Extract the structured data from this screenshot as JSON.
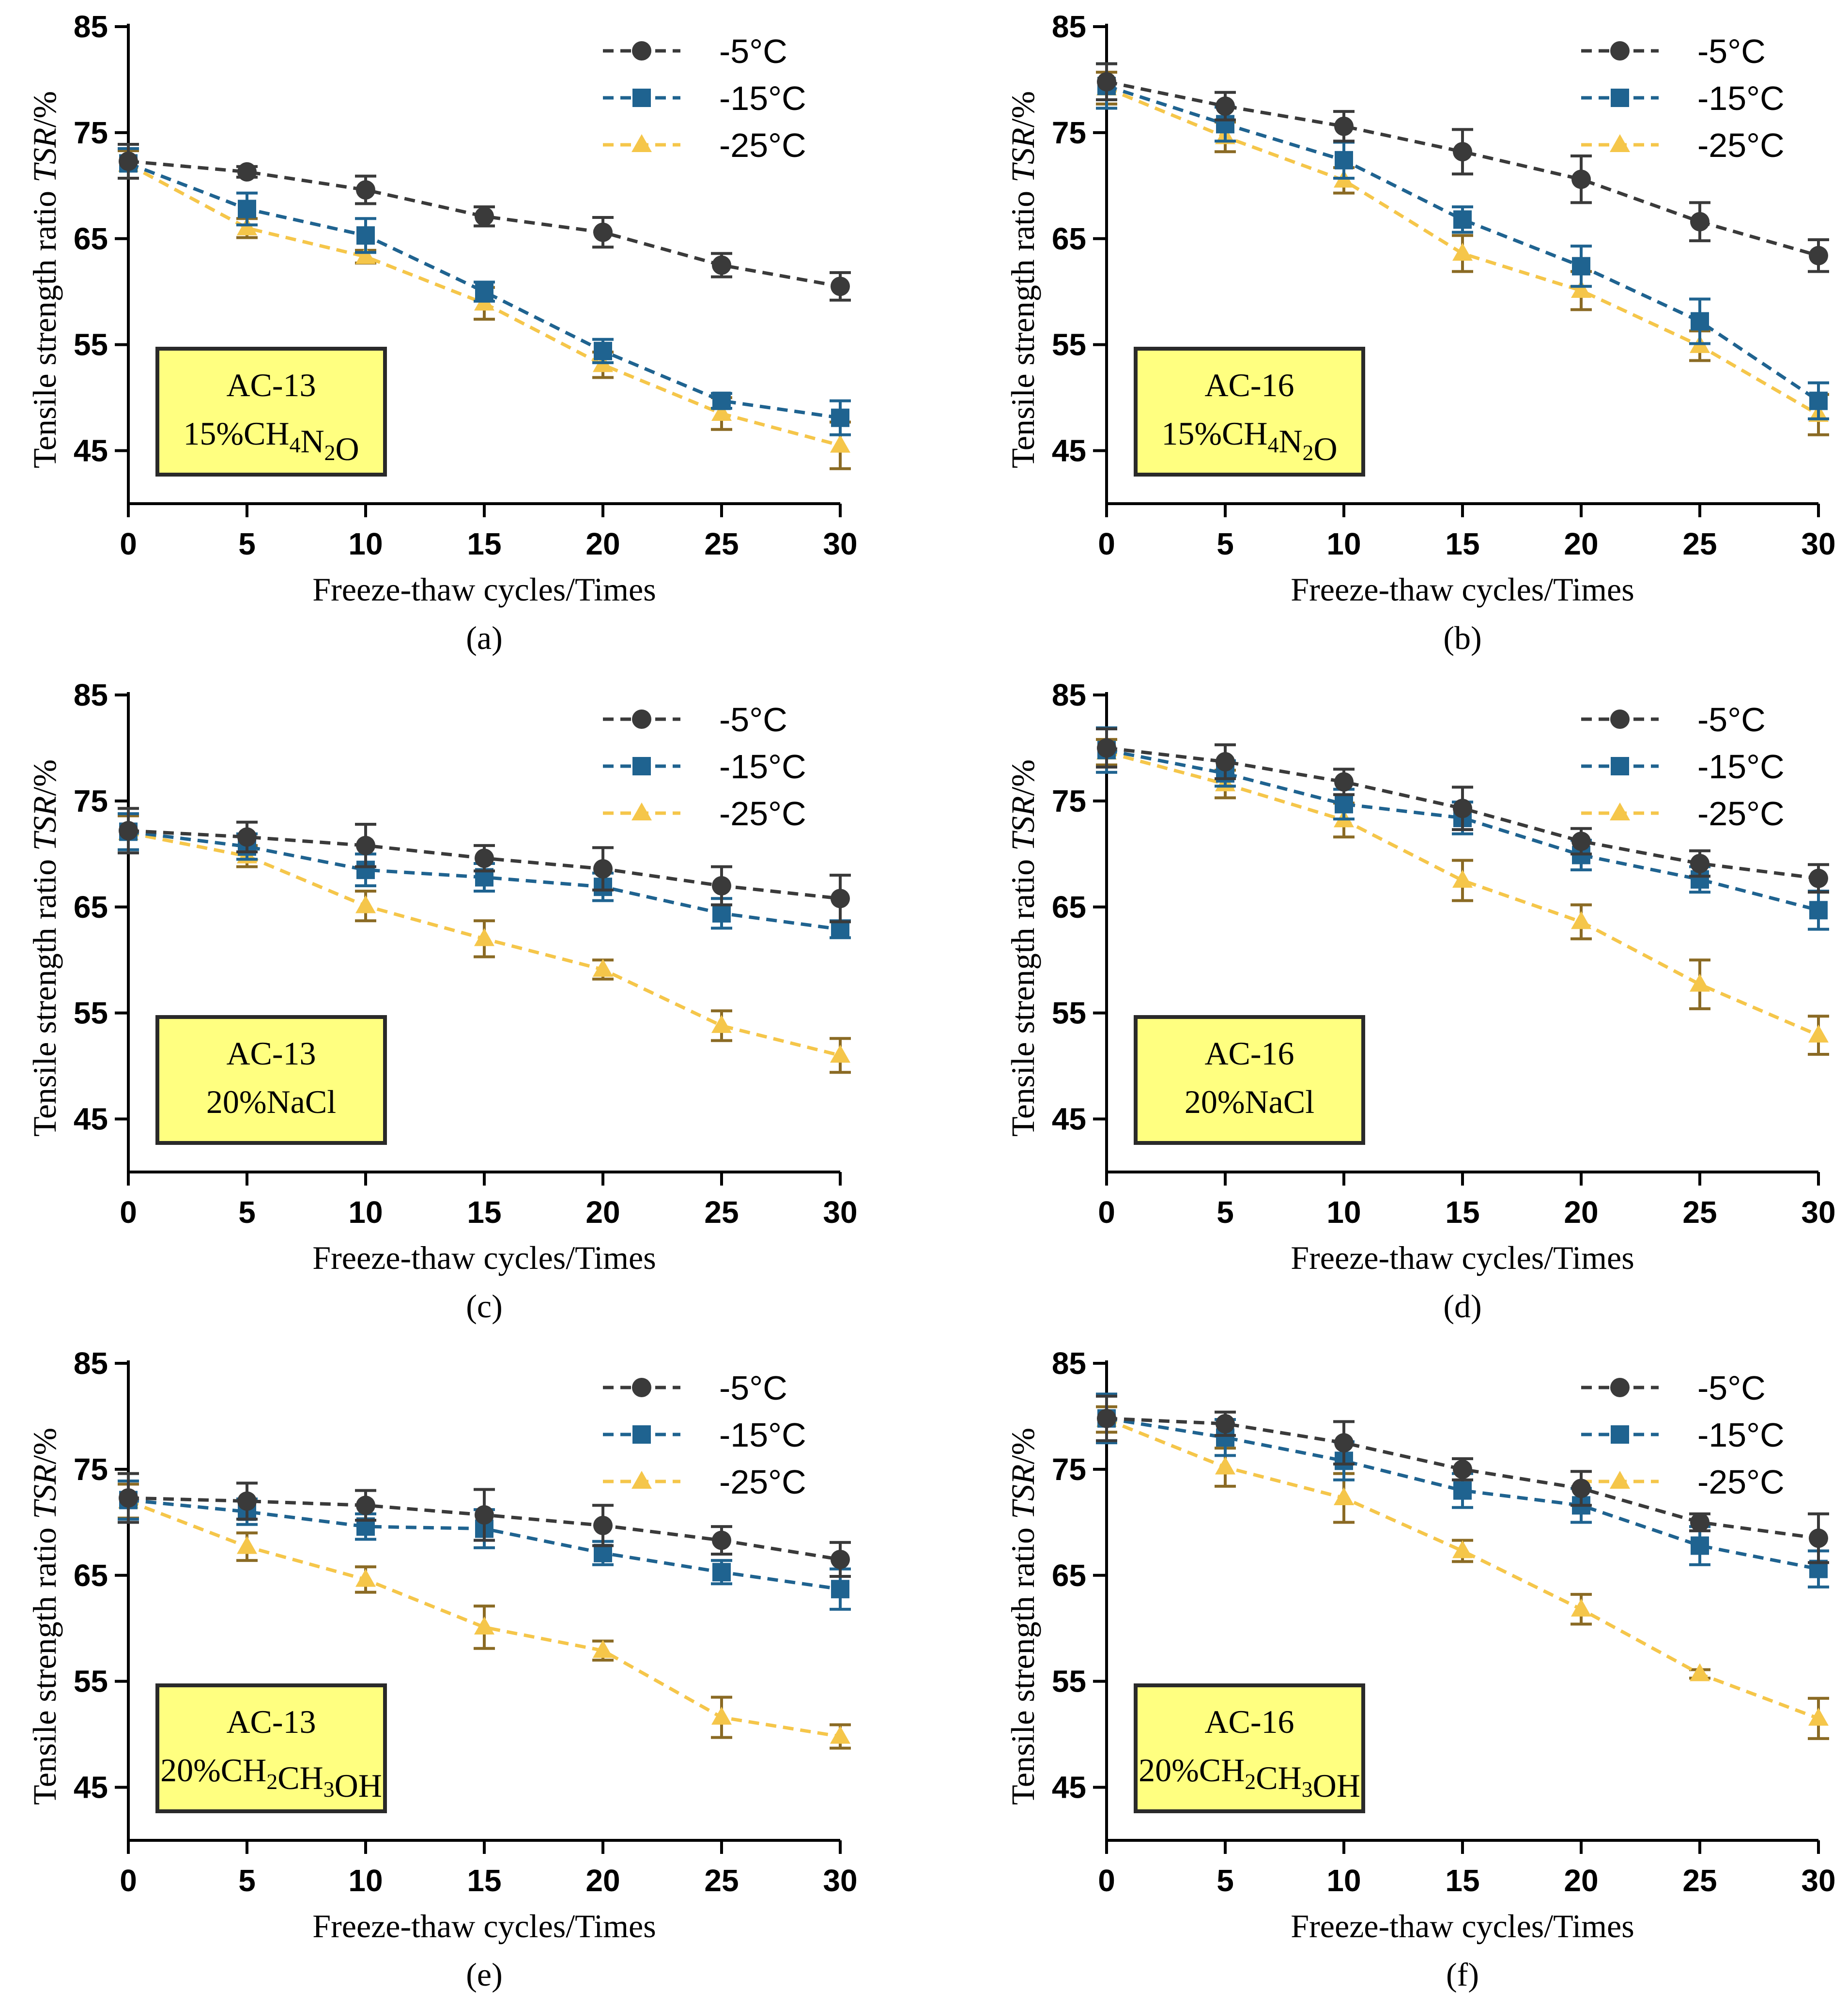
{
  "figure": {
    "legend_labels": [
      "-5°C",
      "-15°C",
      "-25°C"
    ],
    "series_colors": {
      "-5°C": "#3a3a3a",
      "-15°C": "#1f6390",
      "-25°C": "#f5c64a"
    },
    "error_bar_color_25": "#8a6a24",
    "annotation_box_fill": "#ffff80"
  },
  "chart_data": [
    {
      "panel": "(a)",
      "type": "line",
      "xlabel": "Freeze-thaw cycles/Times",
      "ylabel_prefix": "Tensile strength ratio ",
      "ylabel_italic": "TSR",
      "ylabel_suffix": "/%",
      "x": [
        0,
        5,
        10,
        15,
        20,
        25,
        30
      ],
      "xlim": [
        0,
        30
      ],
      "ylim": [
        40,
        85
      ],
      "yticks": [
        45,
        55,
        65,
        75,
        85
      ],
      "annotation": {
        "line1": "AC-13",
        "line2_parts": [
          [
            "15%CH",
            ""
          ],
          [
            "4",
            "sub"
          ],
          [
            "N",
            ""
          ],
          [
            "2",
            "sub"
          ],
          [
            "O",
            ""
          ]
        ]
      },
      "series": [
        {
          "name": "-5°C",
          "marker": "circle",
          "values": [
            72.3,
            71.3,
            69.6,
            67.1,
            65.6,
            62.5,
            60.5
          ],
          "errors": [
            1.6,
            0.5,
            1.3,
            0.9,
            1.4,
            1.1,
            1.3
          ]
        },
        {
          "name": "-15°C",
          "marker": "square",
          "values": [
            72.1,
            67.8,
            65.3,
            60.0,
            54.4,
            49.7,
            48.1
          ],
          "errors": [
            1.4,
            1.5,
            1.6,
            0.9,
            1.1,
            0.7,
            1.6
          ]
        },
        {
          "name": "-25°C",
          "marker": "triangle",
          "values": [
            72.0,
            66.0,
            63.3,
            58.9,
            53.1,
            48.5,
            45.5
          ],
          "errors": [
            1.3,
            0.9,
            0.6,
            1.5,
            1.2,
            1.5,
            2.2
          ]
        }
      ]
    },
    {
      "panel": "(b)",
      "type": "line",
      "xlabel": "Freeze-thaw cycles/Times",
      "ylabel_prefix": "Tensile strength ratio ",
      "ylabel_italic": "TSR",
      "ylabel_suffix": "/%",
      "x": [
        0,
        5,
        10,
        15,
        20,
        25,
        30
      ],
      "xlim": [
        0,
        30
      ],
      "ylim": [
        40,
        85
      ],
      "yticks": [
        45,
        55,
        65,
        75,
        85
      ],
      "annotation": {
        "line1": "AC-16",
        "line2_parts": [
          [
            "15%CH",
            ""
          ],
          [
            "4",
            "sub"
          ],
          [
            "N",
            ""
          ],
          [
            "2",
            "sub"
          ],
          [
            "O",
            ""
          ]
        ]
      },
      "series": [
        {
          "name": "-5°C",
          "marker": "circle",
          "values": [
            79.8,
            77.5,
            75.6,
            73.2,
            70.6,
            66.6,
            63.4
          ],
          "errors": [
            1.7,
            1.3,
            1.4,
            2.1,
            2.2,
            1.8,
            1.5
          ]
        },
        {
          "name": "-15°C",
          "marker": "square",
          "values": [
            79.4,
            75.8,
            72.4,
            66.8,
            62.4,
            57.2,
            49.7
          ],
          "errors": [
            2.1,
            1.6,
            1.7,
            1.2,
            1.9,
            2.1,
            1.7
          ]
        },
        {
          "name": "-25°C",
          "marker": "triangle",
          "values": [
            79.2,
            74.6,
            70.5,
            63.6,
            60.1,
            54.9,
            48.4
          ],
          "errors": [
            1.5,
            1.4,
            1.2,
            1.7,
            1.8,
            1.4,
            1.9
          ]
        }
      ]
    },
    {
      "panel": "(c)",
      "type": "line",
      "xlabel": "Freeze-thaw cycles/Times",
      "ylabel_prefix": "Tensile strength ratio ",
      "ylabel_italic": "TSR",
      "ylabel_suffix": "/%",
      "x": [
        0,
        5,
        10,
        15,
        20,
        25,
        30
      ],
      "xlim": [
        0,
        30
      ],
      "ylim": [
        40,
        85
      ],
      "yticks": [
        45,
        55,
        65,
        75,
        85
      ],
      "annotation": {
        "line1": "AC-13",
        "line2_parts": [
          [
            "20%NaCl",
            ""
          ]
        ]
      },
      "series": [
        {
          "name": "-5°C",
          "marker": "circle",
          "values": [
            72.2,
            71.6,
            70.8,
            69.6,
            68.6,
            67.0,
            65.8
          ],
          "errors": [
            2.1,
            1.4,
            2.0,
            1.2,
            2.0,
            1.8,
            2.2
          ]
        },
        {
          "name": "-15°C",
          "marker": "square",
          "values": [
            72.1,
            70.7,
            68.5,
            67.8,
            66.9,
            64.4,
            62.9
          ],
          "errors": [
            1.7,
            1.2,
            1.5,
            1.3,
            1.3,
            1.4,
            0.8
          ]
        },
        {
          "name": "-25°C",
          "marker": "triangle",
          "values": [
            72.0,
            69.8,
            65.1,
            62.0,
            59.1,
            53.8,
            51.0
          ],
          "errors": [
            1.6,
            1.0,
            1.4,
            1.7,
            0.9,
            1.4,
            1.6
          ]
        }
      ]
    },
    {
      "panel": "(d)",
      "type": "line",
      "xlabel": "Freeze-thaw cycles/Times",
      "ylabel_prefix": "Tensile strength ratio ",
      "ylabel_italic": "TSR",
      "ylabel_suffix": "/%",
      "x": [
        0,
        5,
        10,
        15,
        20,
        25,
        30
      ],
      "xlim": [
        0,
        30
      ],
      "ylim": [
        40,
        85
      ],
      "yticks": [
        45,
        55,
        65,
        75,
        85
      ],
      "annotation": {
        "line1": "AC-16",
        "line2_parts": [
          [
            "20%NaCl",
            ""
          ]
        ]
      },
      "series": [
        {
          "name": "-5°C",
          "marker": "circle",
          "values": [
            80.0,
            78.7,
            76.8,
            74.3,
            71.2,
            69.1,
            67.7
          ],
          "errors": [
            1.8,
            1.6,
            1.2,
            2.0,
            1.2,
            1.2,
            1.3
          ]
        },
        {
          "name": "-15°C",
          "marker": "square",
          "values": [
            79.8,
            77.6,
            74.7,
            73.4,
            69.9,
            67.6,
            64.7
          ],
          "errors": [
            2.1,
            1.2,
            1.4,
            1.5,
            1.4,
            1.2,
            1.8
          ]
        },
        {
          "name": "-25°C",
          "marker": "triangle",
          "values": [
            79.6,
            76.6,
            73.2,
            67.5,
            63.6,
            57.7,
            52.9
          ],
          "errors": [
            1.2,
            1.3,
            1.6,
            1.9,
            1.6,
            2.3,
            1.8
          ]
        }
      ]
    },
    {
      "panel": "(e)",
      "type": "line",
      "xlabel": "Freeze-thaw cycles/Times",
      "ylabel_prefix": "Tensile strength ratio ",
      "ylabel_italic": "TSR",
      "ylabel_suffix": "/%",
      "x": [
        0,
        5,
        10,
        15,
        20,
        25,
        30
      ],
      "xlim": [
        0,
        30
      ],
      "ylim": [
        40,
        85
      ],
      "yticks": [
        45,
        55,
        65,
        75,
        85
      ],
      "annotation": {
        "line1": "AC-13",
        "line2_parts": [
          [
            "20%CH",
            ""
          ],
          [
            "2",
            "sub"
          ],
          [
            "CH",
            ""
          ],
          [
            "3",
            "sub"
          ],
          [
            "OH",
            ""
          ]
        ]
      },
      "series": [
        {
          "name": "-5°C",
          "marker": "circle",
          "values": [
            72.3,
            72.0,
            71.6,
            70.7,
            69.7,
            68.3,
            66.5
          ],
          "errors": [
            2.3,
            1.7,
            1.4,
            2.4,
            1.9,
            1.3,
            1.6
          ]
        },
        {
          "name": "-15°C",
          "marker": "square",
          "values": [
            72.1,
            71.0,
            69.6,
            69.4,
            67.1,
            65.3,
            63.7
          ],
          "errors": [
            1.8,
            1.2,
            1.2,
            1.8,
            1.1,
            1.1,
            1.9
          ]
        },
        {
          "name": "-25°C",
          "marker": "triangle",
          "values": [
            72.0,
            67.7,
            64.6,
            60.1,
            57.9,
            51.6,
            49.8
          ],
          "errors": [
            1.6,
            1.3,
            1.2,
            2.0,
            0.9,
            1.9,
            1.1
          ]
        }
      ]
    },
    {
      "panel": "(f)",
      "type": "line",
      "xlabel": "Freeze-thaw cycles/Times",
      "ylabel_prefix": "Tensile strength ratio ",
      "ylabel_italic": "TSR",
      "ylabel_suffix": "/%",
      "x": [
        0,
        5,
        10,
        15,
        20,
        25,
        30
      ],
      "xlim": [
        0,
        30
      ],
      "ylim": [
        40,
        85
      ],
      "yticks": [
        45,
        55,
        65,
        75,
        85
      ],
      "annotation": {
        "line1": "AC-16",
        "line2_parts": [
          [
            "20%CH",
            ""
          ],
          [
            "2",
            "sub"
          ],
          [
            "CH",
            ""
          ],
          [
            "3",
            "sub"
          ],
          [
            "OH",
            ""
          ]
        ]
      },
      "series": [
        {
          "name": "-5°C",
          "marker": "circle",
          "values": [
            79.8,
            79.3,
            77.5,
            75.0,
            73.2,
            70.0,
            68.5
          ],
          "errors": [
            2.1,
            1.1,
            2.0,
            1.0,
            1.6,
            0.8,
            2.3
          ]
        },
        {
          "name": "-15°C",
          "marker": "square",
          "values": [
            79.8,
            78.0,
            75.8,
            73.0,
            71.6,
            67.8,
            65.6
          ],
          "errors": [
            2.3,
            1.7,
            1.8,
            1.6,
            1.6,
            1.8,
            1.7
          ]
        },
        {
          "name": "-25°C",
          "marker": "triangle",
          "values": [
            79.7,
            75.2,
            72.3,
            67.3,
            61.8,
            55.7,
            51.5
          ],
          "errors": [
            1.2,
            1.8,
            2.3,
            1.0,
            1.4,
            0.4,
            1.9
          ]
        }
      ]
    }
  ]
}
